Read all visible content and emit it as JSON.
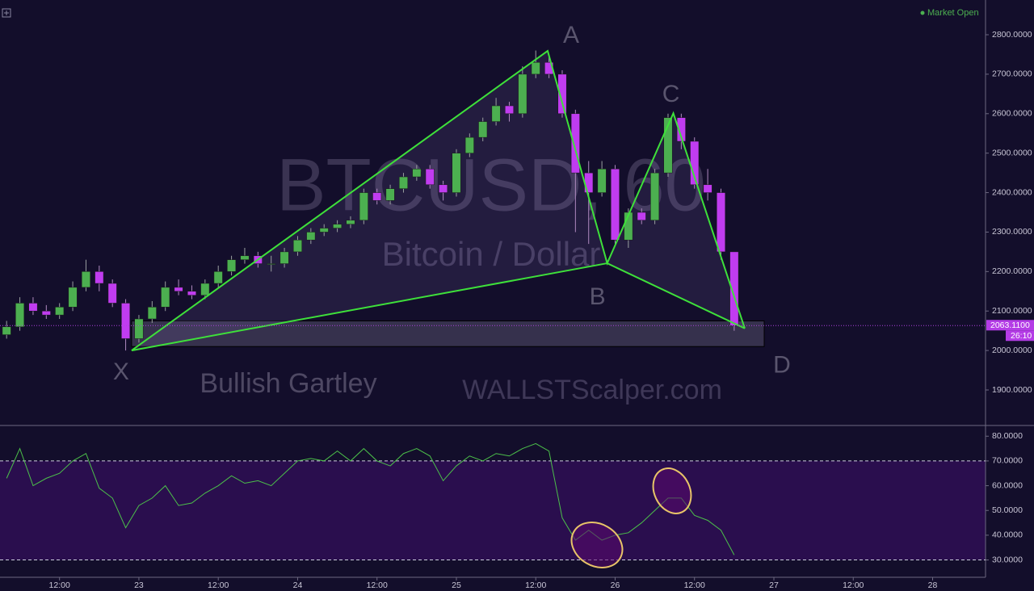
{
  "chart_data": [
    {
      "type": "candlestick",
      "title": "BTCUSD, 60",
      "subtitle": "Bitcoin / Dollar",
      "annotations": [
        "Bullish Gartley",
        "WALLSTScalper.com"
      ],
      "status": "Market Open",
      "countdown": "26:10",
      "last_price": {
        "value": 2063.11,
        "label": "2063.1100"
      },
      "categories": [
        null,
        null,
        null,
        null,
        null,
        null,
        null,
        null,
        null,
        null,
        null,
        null,
        null,
        null,
        null,
        null,
        null,
        null,
        null,
        null,
        null,
        null,
        null,
        null,
        null,
        null,
        null,
        null,
        null,
        null,
        null,
        null,
        null,
        null,
        null,
        null,
        null,
        null,
        null,
        null,
        null,
        null,
        null,
        null,
        null,
        null,
        null,
        null,
        null,
        null,
        null,
        null,
        null,
        null,
        null,
        null
      ],
      "open": [
        2040,
        2060,
        2120,
        2100,
        2090,
        2110,
        2160,
        2200,
        2170,
        2120,
        2030,
        2080,
        2110,
        2160,
        2150,
        2140,
        2170,
        2200,
        2230,
        2240,
        2220,
        2220,
        2250,
        2280,
        2300,
        2310,
        2320,
        2330,
        2400,
        2380,
        2410,
        2440,
        2460,
        2420,
        2400,
        2500,
        2540,
        2580,
        2620,
        2600,
        2700,
        2730,
        2700,
        2600,
        2450,
        2400,
        2460,
        2280,
        2350,
        2330,
        2450,
        2590,
        2530,
        2420,
        2400,
        2250
      ],
      "high": [
        2075,
        2135,
        2135,
        2115,
        2120,
        2175,
        2230,
        2215,
        2180,
        2130,
        2090,
        2125,
        2175,
        2180,
        2165,
        2180,
        2215,
        2240,
        2260,
        2250,
        2240,
        2260,
        2290,
        2310,
        2320,
        2330,
        2340,
        2410,
        2410,
        2420,
        2450,
        2470,
        2470,
        2430,
        2510,
        2550,
        2590,
        2640,
        2630,
        2720,
        2760,
        2745,
        2710,
        2610,
        2480,
        2480,
        2470,
        2360,
        2360,
        2460,
        2600,
        2600,
        2540,
        2460,
        2410,
        2250
      ],
      "low": [
        2030,
        2050,
        2090,
        2080,
        2080,
        2100,
        2150,
        2150,
        2110,
        2000,
        2020,
        2070,
        2100,
        2140,
        2130,
        2130,
        2160,
        2190,
        2220,
        2210,
        2200,
        2210,
        2240,
        2270,
        2290,
        2300,
        2310,
        2320,
        2370,
        2370,
        2400,
        2430,
        2410,
        2380,
        2390,
        2490,
        2530,
        2570,
        2580,
        2590,
        2690,
        2690,
        2590,
        2300,
        2270,
        2390,
        2270,
        2260,
        2320,
        2320,
        2440,
        2510,
        2410,
        2380,
        2230,
        2050
      ],
      "close": [
        2060,
        2120,
        2100,
        2090,
        2110,
        2160,
        2200,
        2170,
        2120,
        2030,
        2080,
        2110,
        2160,
        2150,
        2140,
        2170,
        2200,
        2230,
        2240,
        2220,
        2220,
        2250,
        2280,
        2300,
        2310,
        2320,
        2330,
        2400,
        2380,
        2410,
        2440,
        2460,
        2420,
        2400,
        2500,
        2540,
        2580,
        2620,
        2600,
        2700,
        2730,
        2700,
        2600,
        2450,
        2400,
        2460,
        2280,
        2350,
        2330,
        2450,
        2590,
        2530,
        2420,
        2400,
        2250,
        2063
      ],
      "up_color": "#4caf50",
      "down_color": "#c03cf0",
      "pattern": [
        {
          "label": "X",
          "x": 9.45,
          "y": 2000
        },
        {
          "label": "A",
          "x": 40.9,
          "y": 2759
        },
        {
          "label": "B",
          "x": 45.4,
          "y": 2221
        },
        {
          "label": "C",
          "x": 50.4,
          "y": 2601
        },
        {
          "label": "D",
          "x": 55.8,
          "y": 2056
        }
      ],
      "pattern_color": "#3ee03a",
      "zone": [
        2010,
        2075
      ],
      "xlim": [
        -0.5,
        74
      ],
      "xticks": [
        {
          "value": 4,
          "label": "12:00"
        },
        {
          "value": 10,
          "label": "23"
        },
        {
          "value": 16,
          "label": "12:00"
        },
        {
          "value": 22,
          "label": "24"
        },
        {
          "value": 28,
          "label": "12:00"
        },
        {
          "value": 34,
          "label": "25"
        },
        {
          "value": 40,
          "label": "12:00"
        },
        {
          "value": 46,
          "label": "26"
        },
        {
          "value": 52,
          "label": "12:00"
        },
        {
          "value": 58,
          "label": "27"
        },
        {
          "value": 64,
          "label": "12:00"
        },
        {
          "value": 70,
          "label": "28"
        }
      ],
      "ylim": [
        1810,
        2888
      ],
      "yticks": [
        {
          "value": 1900,
          "label": "1900.0000"
        },
        {
          "value": 2000,
          "label": "2000.0000"
        },
        {
          "value": 2100,
          "label": "2100.0000"
        },
        {
          "value": 2200,
          "label": "2200.0000"
        },
        {
          "value": 2300,
          "label": "2300.0000"
        },
        {
          "value": 2400,
          "label": "2400.0000"
        },
        {
          "value": 2500,
          "label": "2500.0000"
        },
        {
          "value": 2600,
          "label": "2600.0000"
        },
        {
          "value": 2700,
          "label": "2700.0000"
        },
        {
          "value": 2800,
          "label": "2800.0000"
        }
      ]
    },
    {
      "type": "line",
      "values": [
        63,
        75,
        60,
        63,
        65,
        70,
        73,
        59,
        55,
        43,
        52,
        55,
        60,
        52,
        53,
        57,
        60,
        64,
        61,
        62,
        60,
        65,
        70,
        71,
        70,
        74,
        70,
        75,
        70,
        68,
        73,
        75,
        72,
        62,
        68,
        72,
        70,
        73,
        72,
        75,
        77,
        74,
        47,
        38,
        42,
        38,
        40,
        41,
        45,
        50,
        55,
        55,
        48,
        46,
        42,
        32
      ],
      "color": "#4cc04a",
      "bands": [
        30,
        70
      ],
      "ylim": [
        23,
        84
      ],
      "yticks": [
        {
          "value": 30,
          "label": "30.0000"
        },
        {
          "value": 40,
          "label": "40.0000"
        },
        {
          "value": 50,
          "label": "50.0000"
        },
        {
          "value": 60,
          "label": "60.0000"
        },
        {
          "value": 70,
          "label": "70.0000"
        },
        {
          "value": 80,
          "label": "80.0000"
        }
      ]
    }
  ]
}
